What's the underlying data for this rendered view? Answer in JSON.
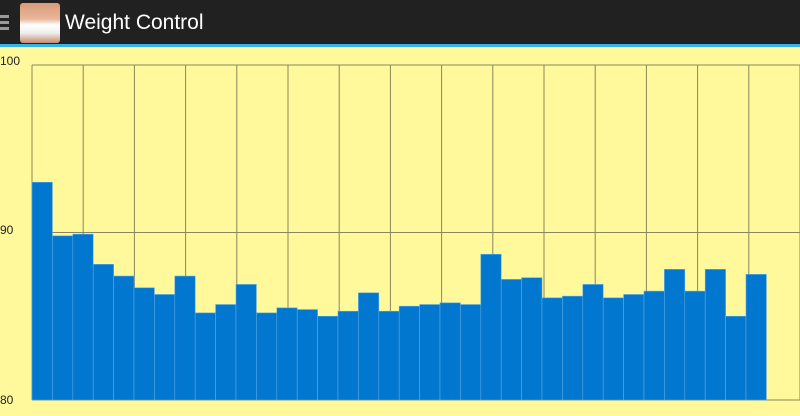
{
  "app": {
    "title": "Weight Control",
    "menu_icon": "hamburger-menu-icon",
    "logo_icon": "waist-measuring-tape-logo"
  },
  "colors": {
    "bar": "#0277cf",
    "background": "#fff99c",
    "action_bar": "#212121",
    "accent": "#33b5e5"
  },
  "chart_data": {
    "type": "bar",
    "title": "",
    "xlabel": "",
    "ylabel": "",
    "ylim": [
      80,
      100
    ],
    "yticks": [
      "80",
      "90",
      "100"
    ],
    "grid": true,
    "values": [
      93.0,
      89.8,
      89.9,
      88.1,
      87.4,
      86.7,
      86.3,
      87.4,
      85.2,
      85.7,
      86.9,
      85.2,
      85.5,
      85.4,
      85.0,
      85.3,
      86.4,
      85.3,
      85.6,
      85.7,
      85.8,
      85.7,
      88.7,
      87.2,
      87.3,
      86.1,
      86.2,
      86.9,
      86.1,
      86.3,
      86.5,
      87.8,
      86.5,
      87.8,
      85.0,
      87.5
    ]
  }
}
